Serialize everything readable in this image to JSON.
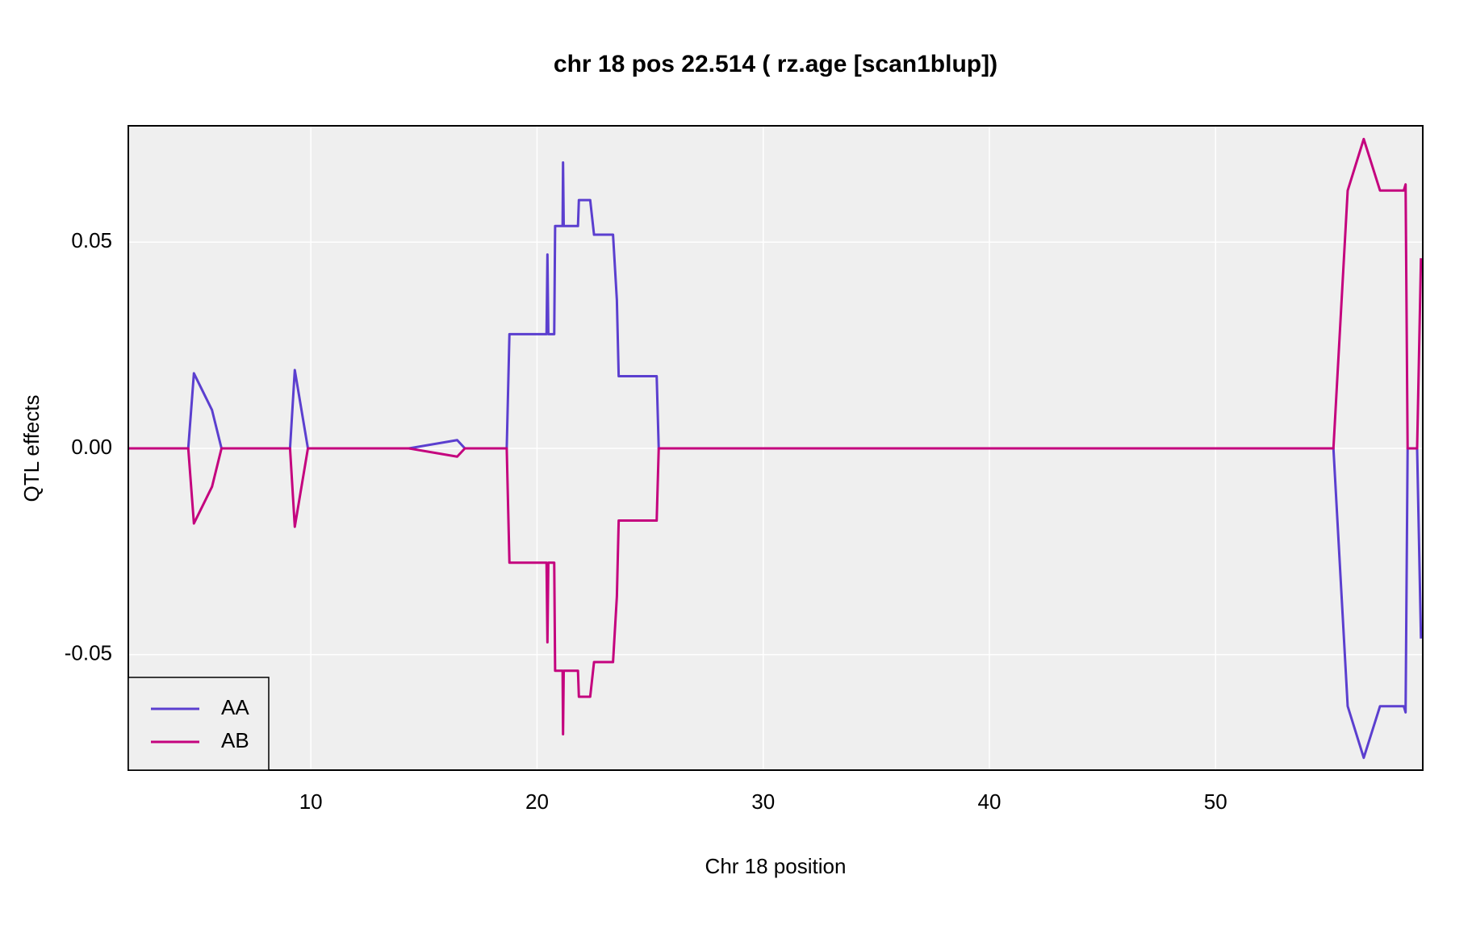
{
  "chart_data": {
    "type": "line",
    "title": "chr 18 pos 22.514 ( rz.age  [scan1blup])",
    "x_label": "Chr 18 position",
    "y_label": "QTL effects",
    "xlim": [
      1.93,
      59.16
    ],
    "ylim": [
      -0.078,
      0.0782
    ],
    "xticks": [
      10,
      20,
      30,
      40,
      50
    ],
    "yticks": [
      -0.05,
      {
        "value": 0,
        "label": "0.00"
      },
      0.05
    ],
    "grid": true,
    "legend": "bottomleft",
    "x": [
      1.93,
      4.58,
      4.83,
      5.63,
      6.05,
      9.08,
      9.29,
      9.87,
      14.33,
      16.47,
      16.81,
      18.66,
      18.78,
      20.42,
      20.46,
      20.5,
      20.76,
      20.8,
      21.13,
      21.15,
      21.18,
      21.81,
      21.85,
      22.35,
      22.52,
      23.36,
      23.53,
      23.61,
      25.29,
      25.38,
      55.21,
      55.84,
      56.55,
      57.27,
      58.32,
      58.4,
      58.49,
      58.91,
      59.08
    ],
    "series": [
      {
        "name": "AA",
        "color": "#5b3fcf",
        "values": [
          0,
          0,
          0.0182,
          0.0093,
          0,
          0,
          0.019,
          0,
          0,
          0.002,
          0,
          0,
          0.0277,
          0.0277,
          0.047,
          0.0277,
          0.0277,
          0.0539,
          0.0539,
          0.0693,
          0.0539,
          0.0539,
          0.0602,
          0.0602,
          0.0518,
          0.0518,
          0.0359,
          0.0175,
          0.0175,
          0,
          0,
          -0.0625,
          -0.075,
          -0.0625,
          -0.0625,
          -0.064,
          0,
          0,
          -0.0461
        ]
      },
      {
        "name": "AB",
        "color": "#c4037e",
        "values": [
          0,
          0,
          -0.0182,
          -0.0093,
          0,
          0,
          -0.019,
          0,
          0,
          -0.002,
          0,
          0,
          -0.0277,
          -0.0277,
          -0.047,
          -0.0277,
          -0.0277,
          -0.0539,
          -0.0539,
          -0.0693,
          -0.0539,
          -0.0539,
          -0.0602,
          -0.0602,
          -0.0518,
          -0.0518,
          -0.0359,
          -0.0175,
          -0.0175,
          0,
          0,
          0.0625,
          0.075,
          0.0625,
          0.0625,
          0.064,
          0,
          0,
          0.0461
        ]
      }
    ]
  }
}
